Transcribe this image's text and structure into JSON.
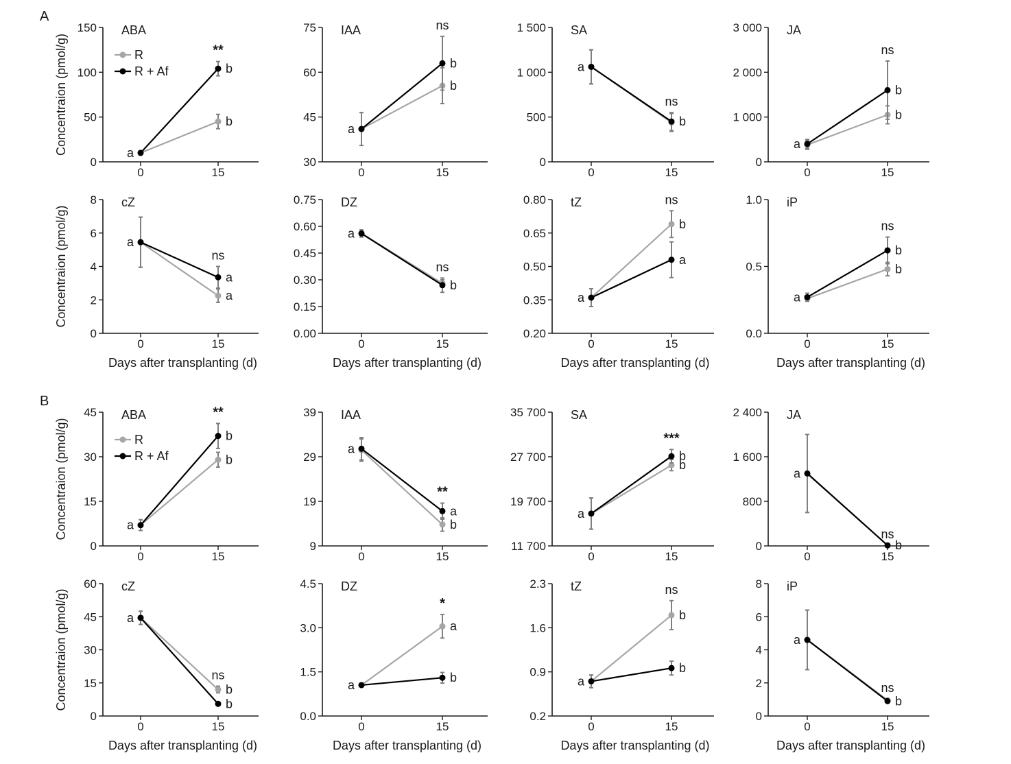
{
  "panel_labels": [
    "A",
    "B"
  ],
  "legend_items": [
    {
      "name": "R",
      "color": "#a6a6a6"
    },
    {
      "name": "R + Af",
      "color": "#000000"
    }
  ],
  "colors": {
    "R": "#a6a6a6",
    "R_Af": "#000000",
    "error_bar": "#7f7f7f",
    "axis": "#1a1a1a"
  },
  "shared": {
    "ylabel": "Concentraion (pmol/g)",
    "xlabel": "Days after transplanting (d)"
  },
  "chart_data": [
    {
      "type": "line",
      "panel": "A",
      "title": "ABA",
      "x": [
        0,
        15
      ],
      "xticks": [
        "0",
        "15"
      ],
      "ylim": [
        0,
        150
      ],
      "yticks": [
        "0",
        "50",
        "100",
        "150"
      ],
      "series": [
        {
          "name": "R",
          "values": [
            10,
            45
          ],
          "errors": [
            2,
            8
          ],
          "letters": [
            "",
            "b"
          ]
        },
        {
          "name": "R + Af",
          "values": [
            10,
            104
          ],
          "errors": [
            2,
            8
          ],
          "letters": [
            "a",
            "b"
          ]
        }
      ],
      "significance": [
        "",
        "**"
      ],
      "ylabel_shown": true,
      "xlabel_shown": false,
      "legend_shown": true
    },
    {
      "type": "line",
      "panel": "A",
      "title": "IAA",
      "x": [
        0,
        15
      ],
      "xticks": [
        "0",
        "15"
      ],
      "ylim": [
        30,
        75
      ],
      "yticks": [
        "30",
        "45",
        "60",
        "75"
      ],
      "series": [
        {
          "name": "R",
          "values": [
            41,
            55.5
          ],
          "errors": [
            5.5,
            6
          ],
          "letters": [
            "",
            "b"
          ]
        },
        {
          "name": "R + Af",
          "values": [
            41,
            63
          ],
          "errors": [
            5.5,
            9
          ],
          "letters": [
            "a",
            "b"
          ]
        }
      ],
      "significance": [
        "",
        "ns"
      ],
      "ylabel_shown": false,
      "xlabel_shown": false,
      "legend_shown": false
    },
    {
      "type": "line",
      "panel": "A",
      "title": "SA",
      "x": [
        0,
        15
      ],
      "xticks": [
        "0",
        "15"
      ],
      "ylim": [
        0,
        1500
      ],
      "yticks": [
        "0",
        "500",
        "1 000",
        "1 500"
      ],
      "series": [
        {
          "name": "R",
          "values": [
            1060,
            440
          ],
          "errors": [
            190,
            100
          ],
          "letters": [
            "",
            ""
          ]
        },
        {
          "name": "R + Af",
          "values": [
            1060,
            450
          ],
          "errors": [
            190,
            100
          ],
          "letters": [
            "a",
            "b"
          ]
        }
      ],
      "significance": [
        "",
        "ns"
      ],
      "ylabel_shown": false,
      "xlabel_shown": false,
      "legend_shown": false
    },
    {
      "type": "line",
      "panel": "A",
      "title": "JA",
      "x": [
        0,
        15
      ],
      "xticks": [
        "0",
        "15"
      ],
      "ylim": [
        0,
        3000
      ],
      "yticks": [
        "0",
        "1 000",
        "2 000",
        "3 000"
      ],
      "series": [
        {
          "name": "R",
          "values": [
            380,
            1050
          ],
          "errors": [
            100,
            200
          ],
          "letters": [
            "",
            "b"
          ]
        },
        {
          "name": "R + Af",
          "values": [
            400,
            1600
          ],
          "errors": [
            100,
            650
          ],
          "letters": [
            "a",
            "b"
          ]
        }
      ],
      "significance": [
        "",
        "ns"
      ],
      "ylabel_shown": false,
      "xlabel_shown": false,
      "legend_shown": false
    },
    {
      "type": "line",
      "panel": "A",
      "title": "cZ",
      "x": [
        0,
        15
      ],
      "xticks": [
        "0",
        "15"
      ],
      "ylim": [
        0,
        8
      ],
      "yticks": [
        "0",
        "2",
        "4",
        "6",
        "8"
      ],
      "series": [
        {
          "name": "R",
          "values": [
            5.45,
            2.25
          ],
          "errors": [
            1.5,
            0.4
          ],
          "letters": [
            "",
            "a"
          ]
        },
        {
          "name": "R + Af",
          "values": [
            5.45,
            3.35
          ],
          "errors": [
            1.5,
            0.65
          ],
          "letters": [
            "a",
            "a"
          ]
        }
      ],
      "significance": [
        "",
        "ns"
      ],
      "ylabel_shown": true,
      "xlabel_shown": true,
      "legend_shown": false
    },
    {
      "type": "line",
      "panel": "A",
      "title": "DZ",
      "x": [
        0,
        15
      ],
      "xticks": [
        "0",
        "15"
      ],
      "ylim": [
        0,
        0.75
      ],
      "yticks": [
        "0.00",
        "0.15",
        "0.30",
        "0.45",
        "0.60",
        "0.75"
      ],
      "series": [
        {
          "name": "R",
          "values": [
            0.56,
            0.28
          ],
          "errors": [
            0.02,
            0.02
          ],
          "letters": [
            "",
            ""
          ]
        },
        {
          "name": "R + Af",
          "values": [
            0.56,
            0.27
          ],
          "errors": [
            0.02,
            0.04
          ],
          "letters": [
            "a",
            "b"
          ]
        }
      ],
      "significance": [
        "",
        "ns"
      ],
      "ylabel_shown": false,
      "xlabel_shown": true,
      "legend_shown": false
    },
    {
      "type": "line",
      "panel": "A",
      "title": "tZ",
      "x": [
        0,
        15
      ],
      "xticks": [
        "0",
        "15"
      ],
      "ylim": [
        0.2,
        0.8
      ],
      "yticks": [
        "0.20",
        "0.35",
        "0.50",
        "0.65",
        "0.80"
      ],
      "series": [
        {
          "name": "R",
          "values": [
            0.36,
            0.69
          ],
          "errors": [
            0.04,
            0.06
          ],
          "letters": [
            "",
            "b"
          ]
        },
        {
          "name": "R + Af",
          "values": [
            0.36,
            0.53
          ],
          "errors": [
            0.04,
            0.08
          ],
          "letters": [
            "a",
            "a"
          ]
        }
      ],
      "significance": [
        "",
        "ns"
      ],
      "ylabel_shown": false,
      "xlabel_shown": true,
      "legend_shown": false
    },
    {
      "type": "line",
      "panel": "A",
      "title": "iP",
      "x": [
        0,
        15
      ],
      "xticks": [
        "0",
        "15"
      ],
      "ylim": [
        0,
        1
      ],
      "yticks": [
        "0.0",
        "0.5",
        "1.0"
      ],
      "series": [
        {
          "name": "R",
          "values": [
            0.26,
            0.48
          ],
          "errors": [
            0.02,
            0.05
          ],
          "letters": [
            "",
            "b"
          ]
        },
        {
          "name": "R + Af",
          "values": [
            0.27,
            0.62
          ],
          "errors": [
            0.03,
            0.1
          ],
          "letters": [
            "a",
            "b"
          ]
        }
      ],
      "significance": [
        "",
        "ns"
      ],
      "ylabel_shown": false,
      "xlabel_shown": true,
      "legend_shown": false
    },
    {
      "type": "line",
      "panel": "B",
      "title": "ABA",
      "x": [
        0,
        15
      ],
      "xticks": [
        "0",
        "15"
      ],
      "ylim": [
        0,
        45
      ],
      "yticks": [
        "0",
        "15",
        "30",
        "45"
      ],
      "series": [
        {
          "name": "R",
          "values": [
            7,
            29
          ],
          "errors": [
            1.8,
            2.5
          ],
          "letters": [
            "",
            "b"
          ]
        },
        {
          "name": "R + Af",
          "values": [
            7,
            37
          ],
          "errors": [
            1.8,
            4.2
          ],
          "letters": [
            "a",
            "b"
          ]
        }
      ],
      "significance": [
        "",
        "**"
      ],
      "ylabel_shown": true,
      "xlabel_shown": false,
      "legend_shown": true
    },
    {
      "type": "line",
      "panel": "B",
      "title": "IAA",
      "x": [
        0,
        15
      ],
      "xticks": [
        "0",
        "15"
      ],
      "ylim": [
        9,
        39
      ],
      "yticks": [
        "9",
        "19",
        "29",
        "39"
      ],
      "series": [
        {
          "name": "R",
          "values": [
            30.5,
            13.8
          ],
          "errors": [
            2.5,
            1.5
          ],
          "letters": [
            "",
            "b"
          ]
        },
        {
          "name": "R + Af",
          "values": [
            30.8,
            16.8
          ],
          "errors": [
            2.5,
            1.8
          ],
          "letters": [
            "a",
            "a"
          ]
        }
      ],
      "significance": [
        "",
        "**"
      ],
      "ylabel_shown": false,
      "xlabel_shown": false,
      "legend_shown": false
    },
    {
      "type": "line",
      "panel": "B",
      "title": "SA",
      "x": [
        0,
        15
      ],
      "xticks": [
        "0",
        "15"
      ],
      "ylim": [
        11700,
        35700
      ],
      "yticks": [
        "11 700",
        "19 700",
        "27 700",
        "35 700"
      ],
      "series": [
        {
          "name": "R",
          "values": [
            17500,
            26200
          ],
          "errors": [
            2800,
            1000
          ],
          "letters": [
            "",
            "b"
          ]
        },
        {
          "name": "R + Af",
          "values": [
            17500,
            27800
          ],
          "errors": [
            2800,
            1200
          ],
          "letters": [
            "a",
            "b"
          ]
        }
      ],
      "significance": [
        "",
        "***"
      ],
      "ylabel_shown": false,
      "xlabel_shown": false,
      "legend_shown": false
    },
    {
      "type": "line",
      "panel": "B",
      "title": "JA",
      "x": [
        0,
        15
      ],
      "xticks": [
        "0",
        "15"
      ],
      "ylim": [
        0,
        2400
      ],
      "yticks": [
        "0",
        "800",
        "1 600",
        "2 400"
      ],
      "series": [
        {
          "name": "R",
          "values": [
            1300,
            10
          ],
          "errors": [
            700,
            5
          ],
          "letters": [
            "",
            ""
          ]
        },
        {
          "name": "R + Af",
          "values": [
            1300,
            10
          ],
          "errors": [
            700,
            5
          ],
          "letters": [
            "a",
            "b"
          ]
        }
      ],
      "significance": [
        "",
        "ns"
      ],
      "ylabel_shown": false,
      "xlabel_shown": false,
      "legend_shown": false
    },
    {
      "type": "line",
      "panel": "B",
      "title": "cZ",
      "x": [
        0,
        15
      ],
      "xticks": [
        "0",
        "15"
      ],
      "ylim": [
        0,
        60
      ],
      "yticks": [
        "0",
        "15",
        "30",
        "45",
        "60"
      ],
      "series": [
        {
          "name": "R",
          "values": [
            44.5,
            12
          ],
          "errors": [
            3,
            1.5
          ],
          "letters": [
            "",
            "b"
          ]
        },
        {
          "name": "R + Af",
          "values": [
            44.5,
            5.5
          ],
          "errors": [
            3,
            0.7
          ],
          "letters": [
            "a",
            "b"
          ]
        }
      ],
      "significance": [
        "",
        "ns"
      ],
      "ylabel_shown": true,
      "xlabel_shown": true,
      "legend_shown": false
    },
    {
      "type": "line",
      "panel": "B",
      "title": "DZ",
      "x": [
        0,
        15
      ],
      "xticks": [
        "0",
        "15"
      ],
      "ylim": [
        0,
        4.5
      ],
      "yticks": [
        "0.0",
        "1.5",
        "3.0",
        "4.5"
      ],
      "series": [
        {
          "name": "R",
          "values": [
            1.05,
            3.05
          ],
          "errors": [
            0.03,
            0.4
          ],
          "letters": [
            "",
            "a"
          ]
        },
        {
          "name": "R + Af",
          "values": [
            1.05,
            1.3
          ],
          "errors": [
            0.03,
            0.18
          ],
          "letters": [
            "a",
            "b"
          ]
        }
      ],
      "significance": [
        "",
        "*"
      ],
      "ylabel_shown": false,
      "xlabel_shown": true,
      "legend_shown": false
    },
    {
      "type": "line",
      "panel": "B",
      "title": "tZ",
      "x": [
        0,
        15
      ],
      "xticks": [
        "0",
        "15"
      ],
      "ylim": [
        0.2,
        2.3
      ],
      "yticks": [
        "0.2",
        "0.9",
        "1.6",
        "2.3"
      ],
      "series": [
        {
          "name": "R",
          "values": [
            0.75,
            1.8
          ],
          "errors": [
            0.1,
            0.23
          ],
          "letters": [
            "",
            "b"
          ]
        },
        {
          "name": "R + Af",
          "values": [
            0.75,
            0.96
          ],
          "errors": [
            0.1,
            0.11
          ],
          "letters": [
            "a",
            "b"
          ]
        }
      ],
      "significance": [
        "",
        "ns"
      ],
      "ylabel_shown": false,
      "xlabel_shown": true,
      "legend_shown": false
    },
    {
      "type": "line",
      "panel": "B",
      "title": "iP",
      "x": [
        0,
        15
      ],
      "xticks": [
        "0",
        "15"
      ],
      "ylim": [
        0,
        8
      ],
      "yticks": [
        "0",
        "2",
        "4",
        "6",
        "8"
      ],
      "series": [
        {
          "name": "R",
          "values": [
            4.6,
            0.95
          ],
          "errors": [
            1.8,
            0.08
          ],
          "letters": [
            "",
            ""
          ]
        },
        {
          "name": "R + Af",
          "values": [
            4.6,
            0.9
          ],
          "errors": [
            1.8,
            0.08
          ],
          "letters": [
            "a",
            "b"
          ]
        }
      ],
      "significance": [
        "",
        "ns"
      ],
      "ylabel_shown": false,
      "xlabel_shown": true,
      "legend_shown": false
    }
  ]
}
